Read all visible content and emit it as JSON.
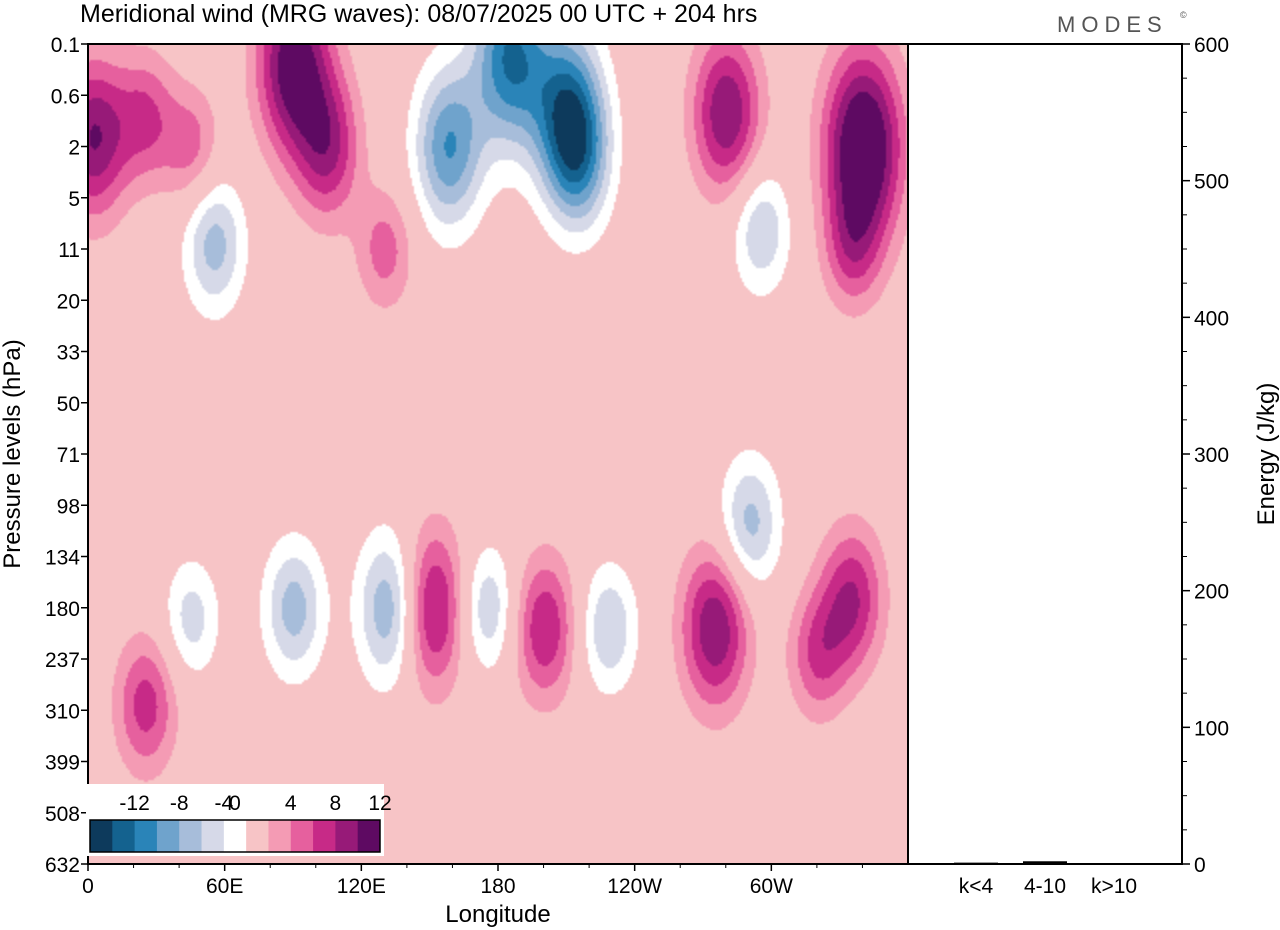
{
  "title": "Meridional wind (MRG waves):  08/07/2025  00 UTC  + 204 hrs",
  "logo": "MODES",
  "logo_mark": "©",
  "colors": {
    "neg": [
      "#0d3a5c",
      "#14628f",
      "#2a84b8",
      "#6fa3cc",
      "#a7bdda",
      "#d6d9e8"
    ],
    "zero": "#ffffff",
    "pos": [
      "#f7c4c6",
      "#f49bb4",
      "#e6609e",
      "#c72a87",
      "#971a78",
      "#5e0a62"
    ]
  },
  "chart_data": [
    {
      "type": "heatmap",
      "xlabel": "Longitude",
      "ylabel": "Pressure levels (hPa)",
      "x_ticks": [
        "0",
        "60E",
        "120E",
        "180",
        "120W",
        "60W"
      ],
      "y_ticks": [
        "0.1",
        "0.6",
        "2",
        "5",
        "11",
        "20",
        "33",
        "50",
        "71",
        "98",
        "134",
        "180",
        "237",
        "310",
        "399",
        "508",
        "632"
      ],
      "colorbar": {
        "tick_labels": [
          "-12",
          "-8",
          "-4",
          "0",
          "4",
          "8",
          "12"
        ],
        "levels": [
          -14,
          -12,
          -10,
          -8,
          -6,
          -4,
          -2,
          2,
          4,
          6,
          8,
          10,
          12,
          14
        ]
      },
      "features": [
        {
          "lon": 2,
          "lev": 1.6,
          "v": 10
        },
        {
          "lon": 25,
          "lev": 1.0,
          "v": 6
        },
        {
          "lon": 45,
          "lev": 2.0,
          "v": 5
        },
        {
          "lon": 55,
          "lev": 10,
          "v": -7
        },
        {
          "lon": 90,
          "lev": 0.2,
          "v": 12
        },
        {
          "lon": 105,
          "lev": 2.0,
          "v": 8
        },
        {
          "lon": 130,
          "lev": 11,
          "v": 5
        },
        {
          "lon": 158,
          "lev": 2.0,
          "v": -10
        },
        {
          "lon": 185,
          "lev": 0.15,
          "v": -12
        },
        {
          "lon": 210,
          "lev": 0.8,
          "v": -11
        },
        {
          "lon": 215,
          "lev": 2.5,
          "v": -8
        },
        {
          "lon": 280,
          "lev": 0.9,
          "v": 10
        },
        {
          "lon": 295,
          "lev": 8,
          "v": -6
        },
        {
          "lon": 340,
          "lev": 2.0,
          "v": 14
        },
        {
          "lon": 335,
          "lev": 11,
          "v": 5
        },
        {
          "lon": 25,
          "lev": 300,
          "v": 7
        },
        {
          "lon": 45,
          "lev": 190,
          "v": -5
        },
        {
          "lon": 90,
          "lev": 180,
          "v": -7
        },
        {
          "lon": 133,
          "lev": 180,
          "v": -9
        },
        {
          "lon": 150,
          "lev": 180,
          "v": 10
        },
        {
          "lon": 175,
          "lev": 180,
          "v": -6
        },
        {
          "lon": 200,
          "lev": 200,
          "v": 8
        },
        {
          "lon": 228,
          "lev": 200,
          "v": -6
        },
        {
          "lon": 275,
          "lev": 200,
          "v": 10
        },
        {
          "lon": 290,
          "lev": 110,
          "v": -7
        },
        {
          "lon": 320,
          "lev": 230,
          "v": 6
        },
        {
          "lon": 335,
          "lev": 170,
          "v": 8
        }
      ]
    },
    {
      "type": "bar",
      "categories": [
        "k<4",
        "4-10",
        "k>10"
      ],
      "values": [
        1,
        2,
        0.5
      ],
      "ylabel": "Energy (J/kg)",
      "ylim": [
        0,
        600
      ],
      "y_ticks": [
        0,
        100,
        200,
        300,
        400,
        500,
        600
      ]
    }
  ]
}
